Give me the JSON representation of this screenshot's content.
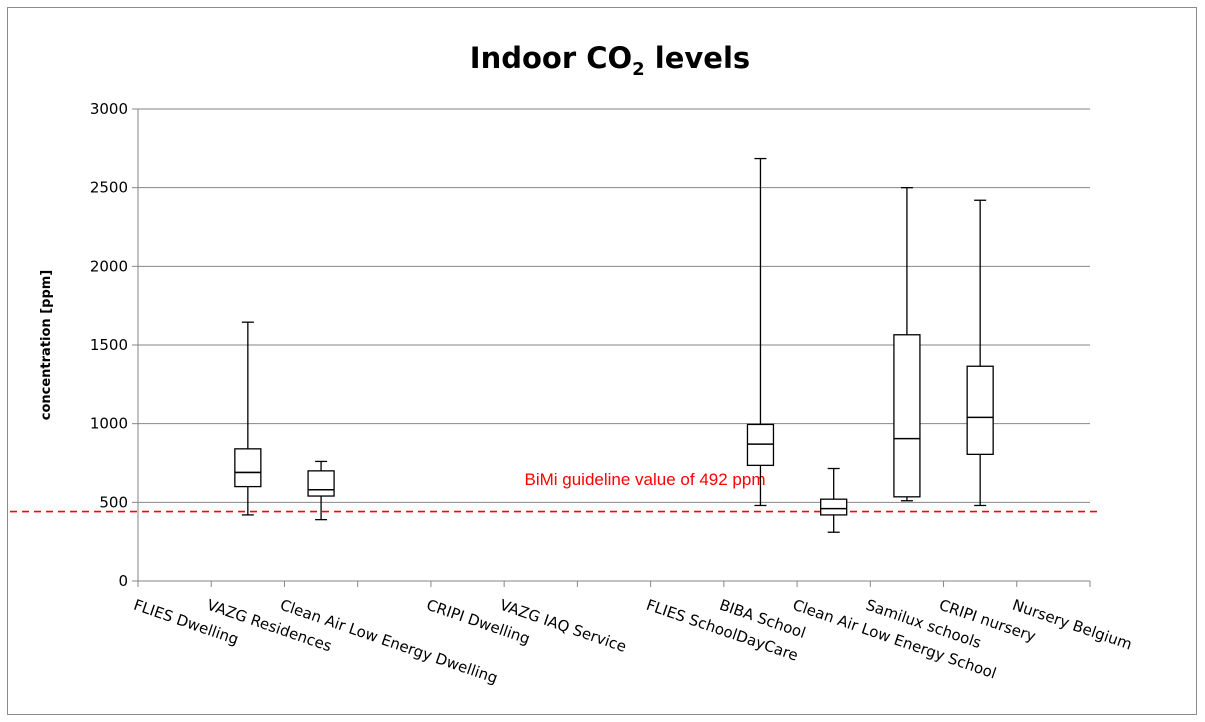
{
  "chart_data": {
    "type": "boxplot",
    "title": "Indoor CO",
    "title_subscript": "2",
    "title_suffix": " levels",
    "xlabel": "",
    "ylabel": "concentration [ppm]",
    "ylim": [
      0,
      3000
    ],
    "yticks": [
      "0",
      "500",
      "1000",
      "1500",
      "2000",
      "2500",
      "3000"
    ],
    "grid": "horizontal",
    "categories": [
      "FLIES Dwelling",
      "VAZG Residences",
      "Clean Air Low Energy Dwelling",
      "",
      "CRIPI Dwelling",
      "VAZG IAQ Service",
      "",
      "FLIES SchoolDayCare",
      "BIBA School",
      "Clean Air Low Energy School",
      "Samilux schools",
      "CRIPI nursery",
      "Nursery Belgium"
    ],
    "series": [
      {
        "category_index": 1,
        "min": 420,
        "q1": 600,
        "median": 690,
        "q3": 840,
        "max": 1645
      },
      {
        "category_index": 2,
        "min": 390,
        "q1": 540,
        "median": 580,
        "q3": 700,
        "max": 760
      },
      {
        "category_index": 8,
        "min": 480,
        "q1": 735,
        "median": 870,
        "q3": 995,
        "max": 2685
      },
      {
        "category_index": 9,
        "min": 310,
        "q1": 420,
        "median": 460,
        "q3": 520,
        "max": 715
      },
      {
        "category_index": 10,
        "min": 510,
        "q1": 535,
        "median": 905,
        "q3": 1565,
        "max": 2500
      },
      {
        "category_index": 11,
        "min": 480,
        "q1": 805,
        "median": 1040,
        "q3": 1365,
        "max": 2420
      }
    ],
    "reference_line": {
      "value": 492,
      "label": "BiMi guideline value of 492 ppm",
      "color": "#ff0000",
      "style": "dashed"
    },
    "box_color": "#000000",
    "grid_color": "#868686"
  }
}
